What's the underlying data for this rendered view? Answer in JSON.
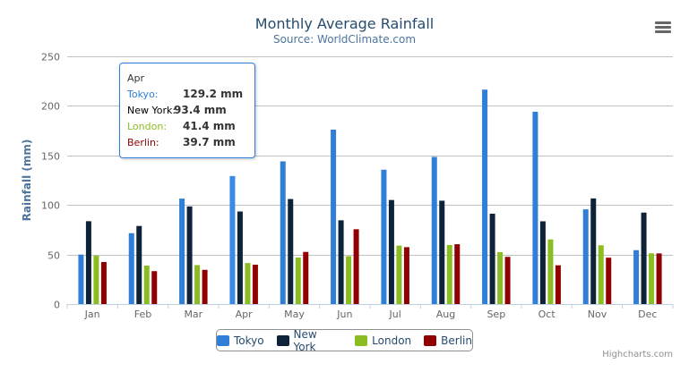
{
  "chart_data": {
    "type": "bar",
    "title": "Monthly Average Rainfall",
    "subtitle": "Source: WorldClimate.com",
    "xlabel": "",
    "ylabel": "Rainfall (mm)",
    "ylim": [
      0,
      250
    ],
    "yticks": [
      "0",
      "50",
      "100",
      "150",
      "200",
      "250"
    ],
    "categories": [
      "Jan",
      "Feb",
      "Mar",
      "Apr",
      "May",
      "Jun",
      "Jul",
      "Aug",
      "Sep",
      "Oct",
      "Nov",
      "Dec"
    ],
    "grid": true,
    "legend_position": "bottom",
    "series": [
      {
        "name": "Tokyo",
        "color": "#2f7ed8",
        "values": [
          49.9,
          71.5,
          106.4,
          129.2,
          144.0,
          176.0,
          135.6,
          148.5,
          216.4,
          194.1,
          95.6,
          54.4
        ]
      },
      {
        "name": "New York",
        "color": "#0d233a",
        "values": [
          83.6,
          78.8,
          98.5,
          93.4,
          106.0,
          84.5,
          105.0,
          104.3,
          91.2,
          83.5,
          106.6,
          92.3
        ]
      },
      {
        "name": "London",
        "color": "#8bbc21",
        "values": [
          48.9,
          38.8,
          39.3,
          41.4,
          47.0,
          48.3,
          59.0,
          59.6,
          52.4,
          65.2,
          59.3,
          51.2
        ]
      },
      {
        "name": "Berlin",
        "color": "#910000",
        "values": [
          42.4,
          33.2,
          34.5,
          39.7,
          52.6,
          75.5,
          57.4,
          60.4,
          47.6,
          39.1,
          46.8,
          51.1
        ]
      }
    ]
  },
  "tooltip": {
    "header": "Apr",
    "rows": [
      {
        "label": "Tokyo:",
        "value": "129.2 mm",
        "color": "#2f7ed8"
      },
      {
        "label": "New York:",
        "value": "93.4 mm",
        "color": "#000000"
      },
      {
        "label": "London:",
        "value": "41.4 mm",
        "color": "#8bbc21"
      },
      {
        "label": "Berlin:",
        "value": "39.7 mm",
        "color": "#910000"
      }
    ]
  },
  "credits": "Highcharts.com",
  "menu_icon": "hamburger-menu-icon"
}
